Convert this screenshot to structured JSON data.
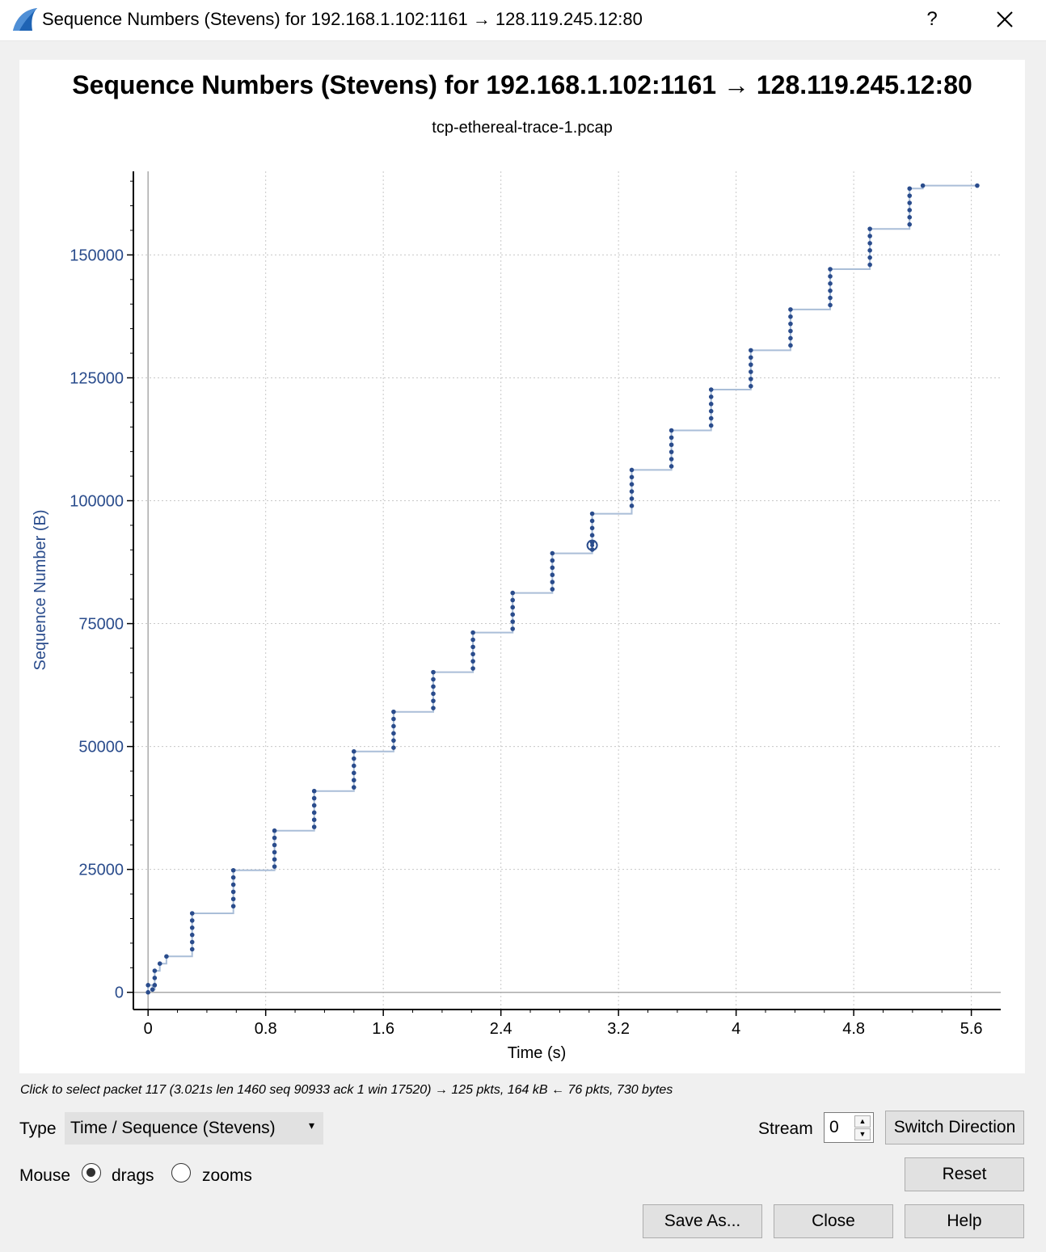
{
  "window": {
    "title": "Sequence Numbers (Stevens) for 192.168.1.102:1161 → 128.119.245.12:80",
    "help_label": "?",
    "close_icon": "close-icon",
    "app_icon": "wireshark-fin-icon"
  },
  "chart_data": {
    "type": "scatter",
    "title": "Sequence Numbers (Stevens) for 192.168.1.102:1161 → 128.119.245.12:80",
    "subtitle": "tcp-ethereal-trace-1.pcap",
    "xlabel": "Time (s)",
    "ylabel": "Sequence Number (B)",
    "xlim": [
      -0.1,
      5.8
    ],
    "ylim": [
      -3500,
      167000
    ],
    "xticks": [
      "0",
      "0.8",
      "1.6",
      "2.4",
      "3.2",
      "4",
      "4.8",
      "5.6"
    ],
    "yticks": [
      "0",
      "25000",
      "50000",
      "75000",
      "100000",
      "125000",
      "150000"
    ],
    "grid": true,
    "series_color": "#2a4c8c",
    "line_color": "#aabed8",
    "selected_point": {
      "x": 3.021,
      "y": 90933
    },
    "bursts": [
      {
        "t": 0.0,
        "seq_start": 0,
        "count": 2
      },
      {
        "t": 0.03,
        "seq_start": 565,
        "count": 1
      },
      {
        "t": 0.045,
        "seq_start": 1460,
        "count": 3
      },
      {
        "t": 0.08,
        "seq_start": 5840,
        "count": 1
      },
      {
        "t": 0.125,
        "seq_start": 7300,
        "count": 1
      },
      {
        "t": 0.3,
        "seq_start": 8760,
        "count": 6
      },
      {
        "t": 0.58,
        "seq_start": 17520,
        "count": 6
      },
      {
        "t": 0.86,
        "seq_start": 25580,
        "count": 6
      },
      {
        "t": 1.13,
        "seq_start": 33640,
        "count": 6
      },
      {
        "t": 1.4,
        "seq_start": 41700,
        "count": 6
      },
      {
        "t": 1.67,
        "seq_start": 49760,
        "count": 6
      },
      {
        "t": 1.94,
        "seq_start": 57820,
        "count": 6
      },
      {
        "t": 2.21,
        "seq_start": 65880,
        "count": 6
      },
      {
        "t": 2.48,
        "seq_start": 73940,
        "count": 6
      },
      {
        "t": 2.75,
        "seq_start": 82000,
        "count": 6
      },
      {
        "t": 3.021,
        "seq_start": 90060,
        "count": 6
      },
      {
        "t": 3.29,
        "seq_start": 98960,
        "count": 6
      },
      {
        "t": 3.56,
        "seq_start": 107000,
        "count": 6
      },
      {
        "t": 3.83,
        "seq_start": 115300,
        "count": 6
      },
      {
        "t": 4.1,
        "seq_start": 123300,
        "count": 6
      },
      {
        "t": 4.37,
        "seq_start": 131600,
        "count": 6
      },
      {
        "t": 4.64,
        "seq_start": 139800,
        "count": 6
      },
      {
        "t": 4.91,
        "seq_start": 148000,
        "count": 6
      },
      {
        "t": 5.18,
        "seq_start": 156200,
        "count": 6
      },
      {
        "t": 5.27,
        "seq_start": 164100,
        "count": 1
      },
      {
        "t": 5.64,
        "seq_start": 164100,
        "count": 1
      }
    ]
  },
  "status": {
    "text": "Click to select packet 117 (3.021s len 1460 seq 90933 ack 1 win 17520) → 125 pkts, 164 kB ← 76 pkts, 730 bytes"
  },
  "controls": {
    "type_label": "Type",
    "type_value": "Time / Sequence (Stevens)",
    "stream_label": "Stream",
    "stream_value": "0",
    "switch_direction": "Switch Direction",
    "mouse_label": "Mouse",
    "drags_label": "drags",
    "zooms_label": "zooms",
    "mouse_mode": "drags",
    "reset": "Reset",
    "save_as": "Save As...",
    "close": "Close",
    "help": "Help"
  }
}
